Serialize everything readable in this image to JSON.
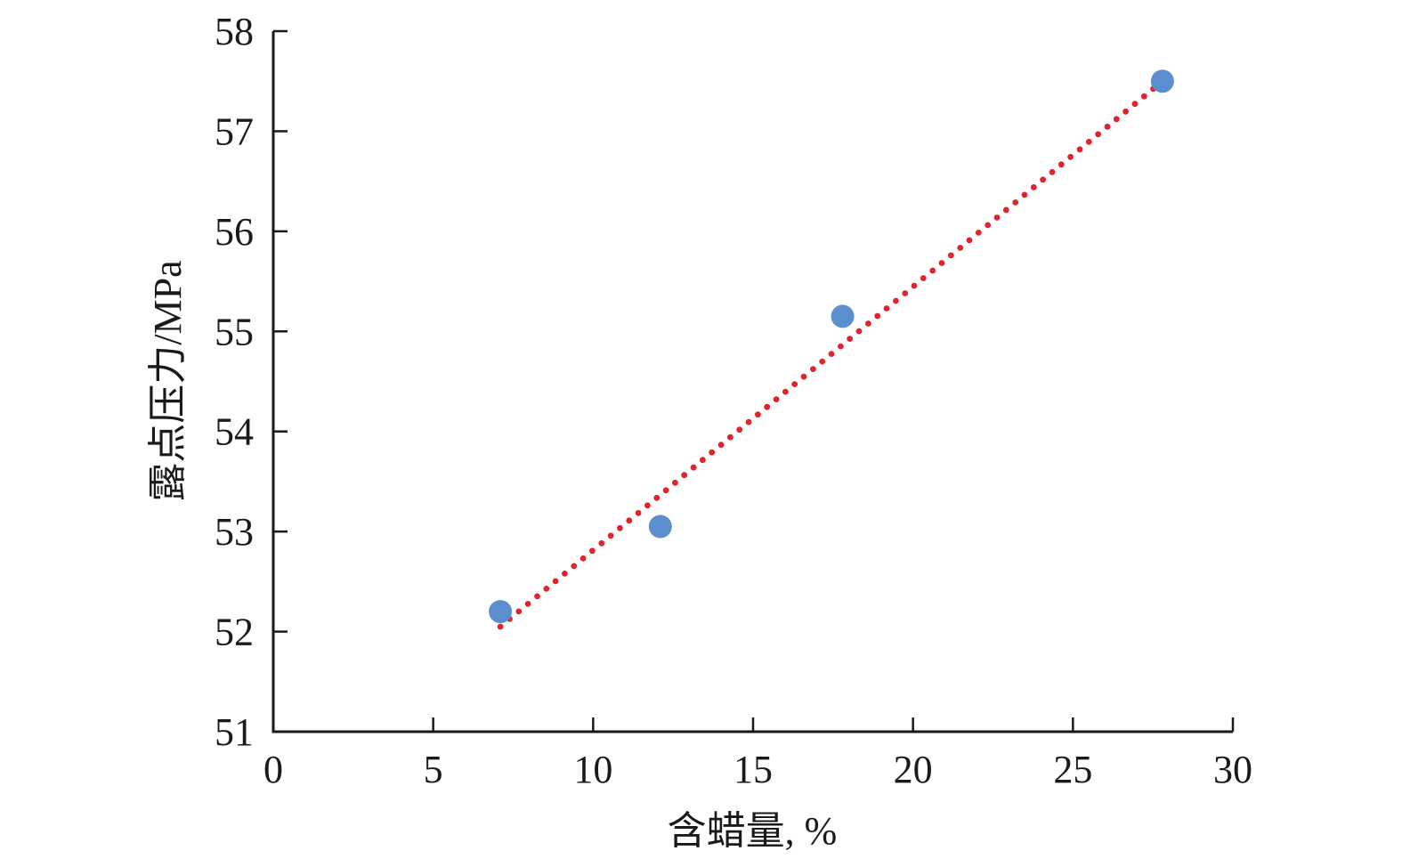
{
  "chart_data": {
    "type": "scatter",
    "title": "",
    "xlabel": "含蜡量, %",
    "ylabel": "露点压力/MPa",
    "xlim": [
      0,
      30
    ],
    "ylim": [
      51,
      58
    ],
    "x_ticks": [
      0,
      5,
      10,
      15,
      20,
      25,
      30
    ],
    "y_ticks": [
      51,
      52,
      53,
      54,
      55,
      56,
      57,
      58
    ],
    "grid": false,
    "legend": "none",
    "series": [
      {
        "points": [
          {
            "x": 7.1,
            "y": 52.2
          },
          {
            "x": 12.1,
            "y": 53.05
          },
          {
            "x": 17.8,
            "y": 55.15
          },
          {
            "x": 27.8,
            "y": 57.5
          }
        ],
        "marker": "circle",
        "color": "#5b8fcf"
      }
    ],
    "trendline": {
      "type": "linear",
      "style": "dotted",
      "color": "#e0232e",
      "x_range": [
        7.1,
        27.8
      ],
      "y_range": [
        52.05,
        57.5
      ]
    }
  }
}
